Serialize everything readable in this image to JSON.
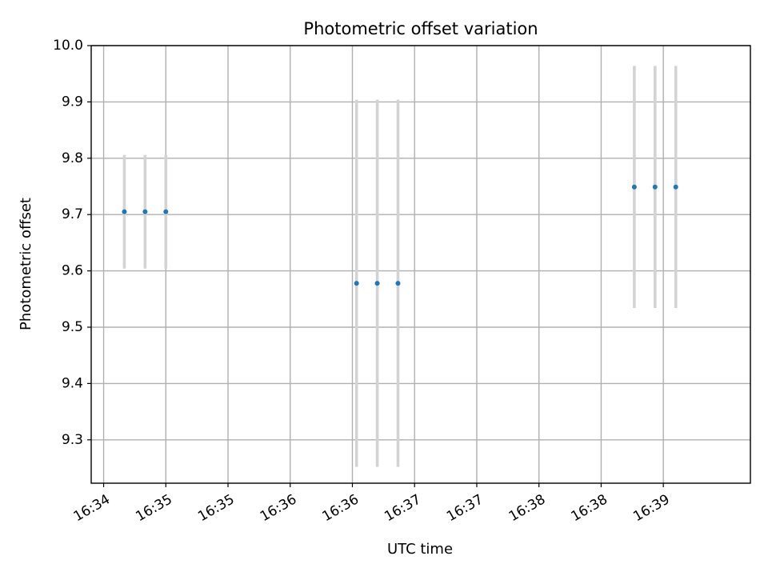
{
  "chart_data": {
    "type": "scatter",
    "title": "Photometric offset variation",
    "xlabel": "UTC time",
    "ylabel": "Photometric offset",
    "x_axis": {
      "kind": "time",
      "range": [
        "16:34:04",
        "16:39:22"
      ],
      "ticks": [
        {
          "t": "16:34:10",
          "label": "16:34"
        },
        {
          "t": "16:34:40",
          "label": "16:35"
        },
        {
          "t": "16:35:10",
          "label": "16:35"
        },
        {
          "t": "16:35:40",
          "label": "16:36"
        },
        {
          "t": "16:36:10",
          "label": "16:36"
        },
        {
          "t": "16:36:40",
          "label": "16:37"
        },
        {
          "t": "16:37:10",
          "label": "16:37"
        },
        {
          "t": "16:37:40",
          "label": "16:38"
        },
        {
          "t": "16:38:10",
          "label": "16:38"
        },
        {
          "t": "16:38:40",
          "label": "16:39"
        }
      ]
    },
    "y_axis": {
      "range": [
        9.223,
        10.0
      ],
      "ticks": [
        9.3,
        9.4,
        9.5,
        9.6,
        9.7,
        9.8,
        9.9,
        10.0
      ],
      "tick_labels": [
        "9.3",
        "9.4",
        "9.5",
        "9.6",
        "9.7",
        "9.8",
        "9.9",
        "10.0"
      ]
    },
    "grid": true,
    "colors": {
      "point": "#1f77b4",
      "error_bar": "#d3d3d3"
    },
    "points": [
      {
        "t": "16:34:20",
        "y": 9.705,
        "yerr": 0.101
      },
      {
        "t": "16:34:30",
        "y": 9.705,
        "yerr": 0.101
      },
      {
        "t": "16:34:40",
        "y": 9.705,
        "yerr": 0.101
      },
      {
        "t": "16:36:12",
        "y": 9.578,
        "yerr": 0.326
      },
      {
        "t": "16:36:22",
        "y": 9.578,
        "yerr": 0.326
      },
      {
        "t": "16:36:32",
        "y": 9.578,
        "yerr": 0.326
      },
      {
        "t": "16:38:26",
        "y": 9.749,
        "yerr": 0.215
      },
      {
        "t": "16:38:36",
        "y": 9.749,
        "yerr": 0.215
      },
      {
        "t": "16:38:46",
        "y": 9.749,
        "yerr": 0.215
      }
    ]
  }
}
